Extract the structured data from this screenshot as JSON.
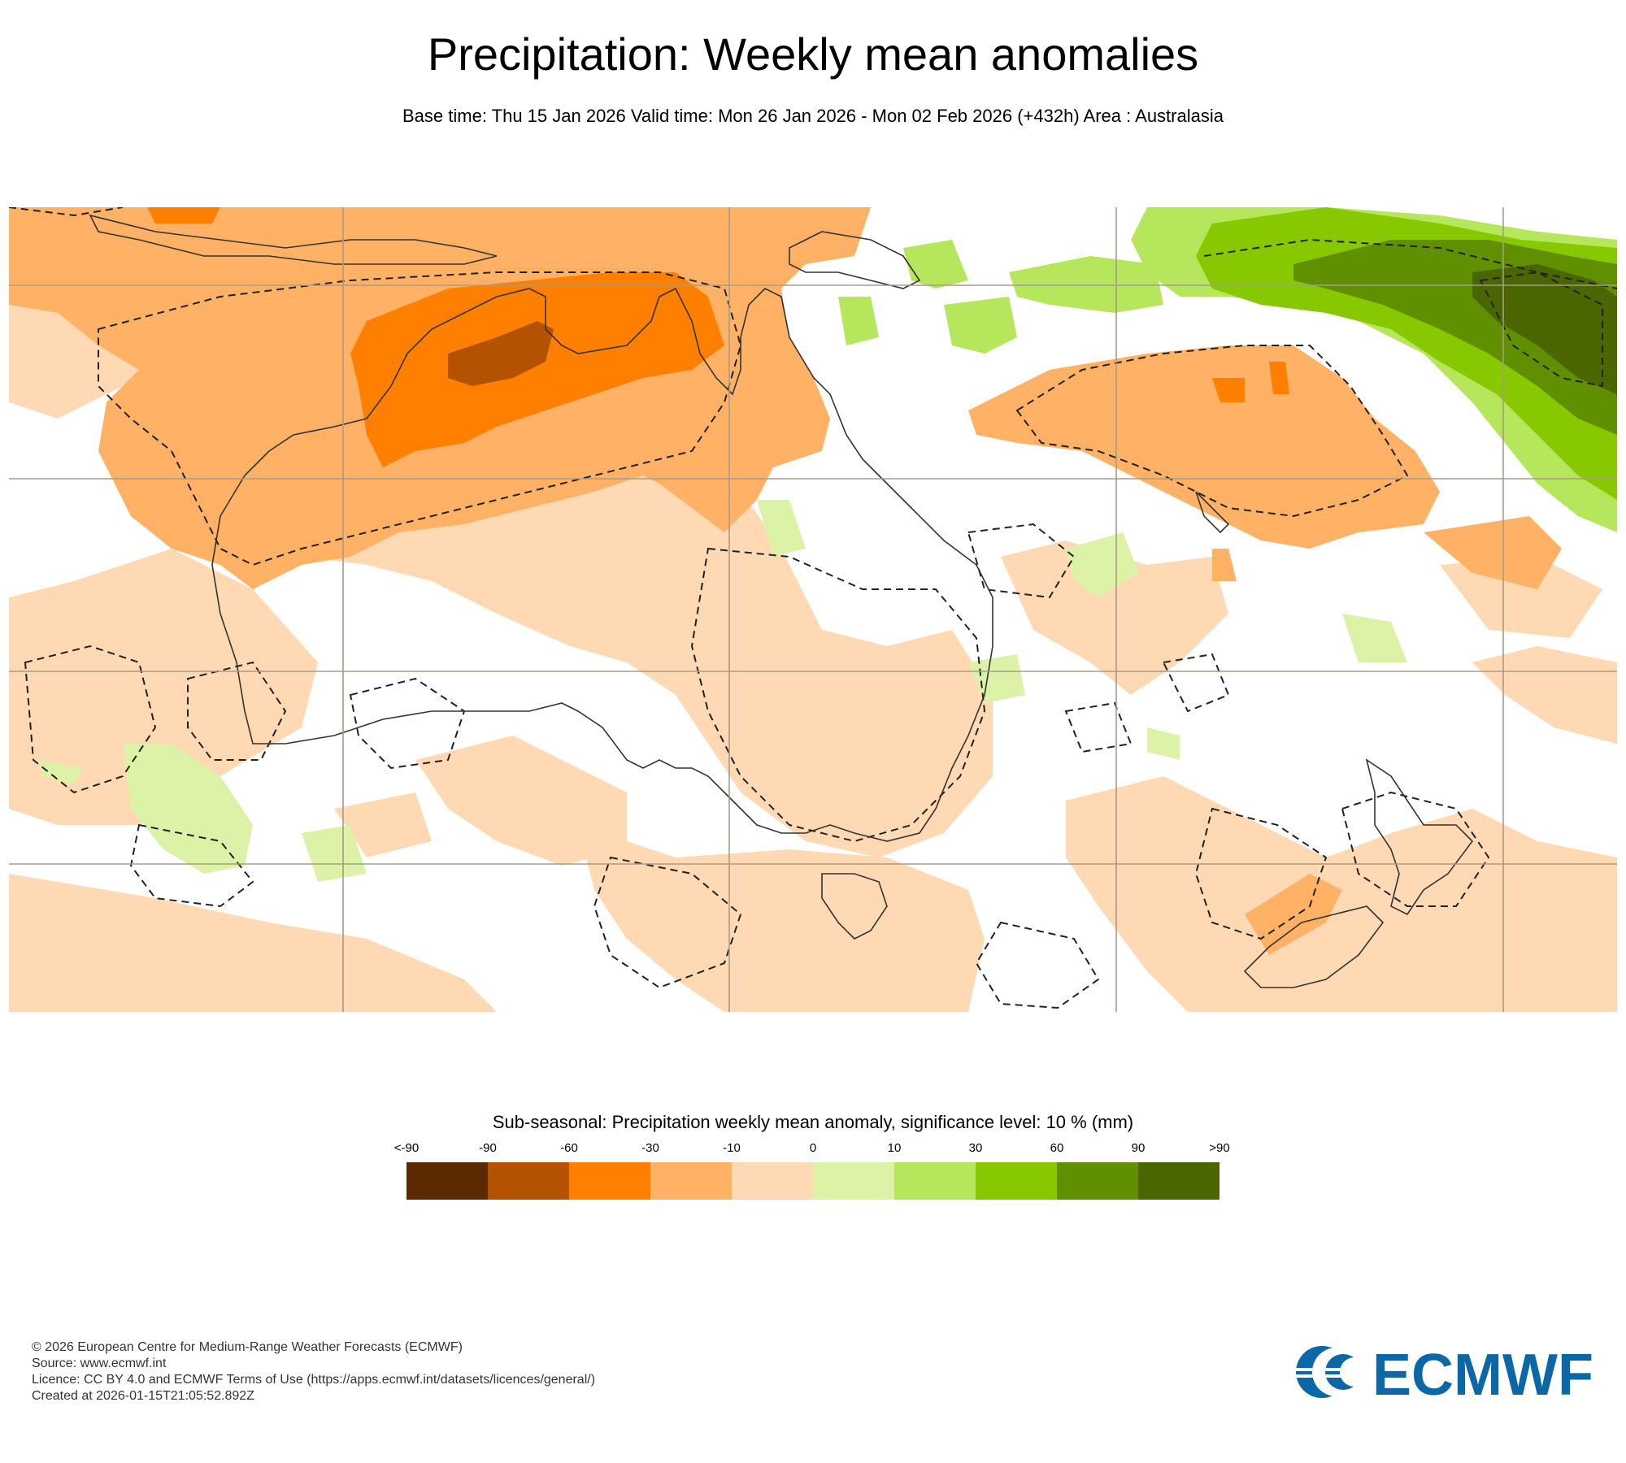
{
  "header": {
    "title": "Precipitation: Weekly mean anomalies",
    "subtitle": "Base time: Thu 15 Jan 2026 Valid time: Mon 26 Jan 2026 - Mon 02 Feb 2026 (+432h) Area : Australasia"
  },
  "map": {
    "region": "Australasia"
  },
  "legend": {
    "title": "Sub-seasonal: Precipitation weekly mean anomaly, significance level: 10 % (mm)",
    "ticks": [
      "<-90",
      "-90",
      "-60",
      "-30",
      "-10",
      "0",
      "10",
      "30",
      "60",
      "90",
      ">90"
    ],
    "colors": [
      "#5c2a00",
      "#b35200",
      "#ff7f00",
      "#ffb266",
      "#ffd9b3",
      "#dcf2a6",
      "#b5e65c",
      "#88c800",
      "#609000",
      "#4a6600"
    ]
  },
  "footer": {
    "copyright": "© 2026 European Centre for Medium-Range Weather Forecasts (ECMWF)",
    "source": "Source: www.ecmwf.int",
    "licence": "Licence: CC BY 4.0 and ECMWF Terms of Use (https://apps.ecmwf.int/datasets/licences/general/)",
    "created": "Created at 2026-01-15T21:05:52.892Z"
  },
  "logo": {
    "text": "ECMWF",
    "color": "#0b67a6"
  }
}
